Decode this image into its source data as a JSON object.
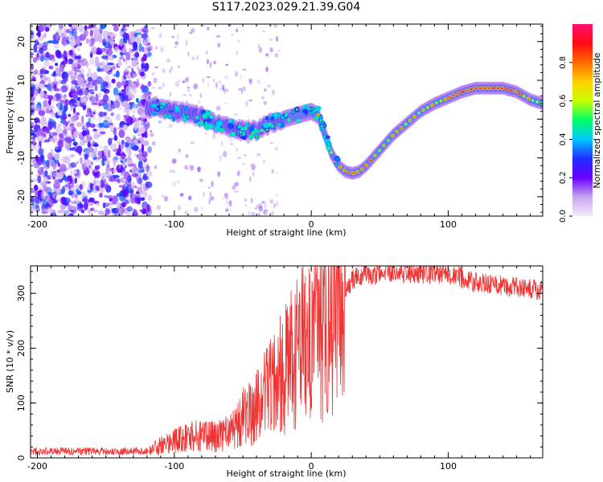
{
  "title": "S117.2023.029.21.39.G04",
  "colorbar": {
    "label": "Normalized spectral amplitude",
    "ticks": [
      "0.0",
      "0.2",
      "0.4",
      "0.6",
      "0.8"
    ],
    "tick_values": [
      0.0,
      0.2,
      0.4,
      0.6,
      0.8
    ],
    "range": [
      0,
      1
    ],
    "colors": [
      "#f4eafa",
      "#c6a5ef",
      "#6a00ff",
      "#1f2eff",
      "#00c8ff",
      "#00ff66",
      "#c8ff00",
      "#ffd000",
      "#ff6a00",
      "#ff0a14",
      "#ff1070"
    ]
  },
  "chart_data": [
    {
      "type": "heatmap",
      "xlabel": "Height of straight line (km)",
      "ylabel": "Frequency (Hz)",
      "xlim": [
        -205,
        169
      ],
      "ylim": [
        -25,
        24.5
      ],
      "xticks": [
        -200,
        -100,
        0,
        100
      ],
      "yticks": [
        -20,
        -10,
        0,
        10,
        20
      ],
      "xtick_labels": [
        "-200",
        "-100",
        "0",
        "100"
      ],
      "ytick_labels": [
        "-20",
        "-10",
        "0",
        "10",
        "20"
      ],
      "ridge": {
        "x": [
          -120,
          -110,
          -100,
          -90,
          -80,
          -70,
          -60,
          -50,
          -40,
          -30,
          -20,
          -10,
          0,
          5,
          10,
          15,
          20,
          25,
          30,
          35,
          40,
          50,
          60,
          70,
          80,
          90,
          100,
          110,
          120,
          130,
          140,
          150,
          160,
          169
        ],
        "freq": [
          3,
          3,
          2,
          1.5,
          0.5,
          -1,
          -2,
          -3,
          -3,
          -1,
          0,
          1,
          2,
          1,
          -4,
          -9,
          -12,
          -13.5,
          -14,
          -13.5,
          -12,
          -8,
          -4,
          -1,
          2,
          4,
          5.5,
          7,
          8,
          8,
          8,
          7,
          5,
          4
        ]
      },
      "noise_region_xmax": -118,
      "colormap": "gist_rainbow (white at 0)"
    },
    {
      "type": "line",
      "xlabel": "Height of straight line (km)",
      "ylabel": "SNR (10 * v/v)",
      "xlim": [
        -205,
        169
      ],
      "ylim": [
        0,
        350
      ],
      "xticks": [
        -200,
        -100,
        0,
        100
      ],
      "yticks": [
        0,
        100,
        200,
        300
      ],
      "xtick_labels": [
        "-200",
        "-100",
        "0",
        "100"
      ],
      "ytick_labels": [
        "0",
        "100",
        "200",
        "300"
      ],
      "series": [
        {
          "color": "#ee3333",
          "envelope_x": [
            -205,
            -120,
            -110,
            -100,
            -90,
            -80,
            -70,
            -60,
            -50,
            -40,
            -30,
            -20,
            -10,
            0,
            10,
            20,
            25,
            30,
            40,
            60,
            80,
            100,
            110,
            120,
            140,
            160,
            169
          ],
          "envelope_y": [
            12,
            12,
            22,
            30,
            38,
            40,
            38,
            45,
            75,
            95,
            125,
            160,
            195,
            215,
            245,
            285,
            305,
            325,
            335,
            338,
            338,
            335,
            328,
            320,
            314,
            308,
            305
          ]
        }
      ]
    }
  ]
}
